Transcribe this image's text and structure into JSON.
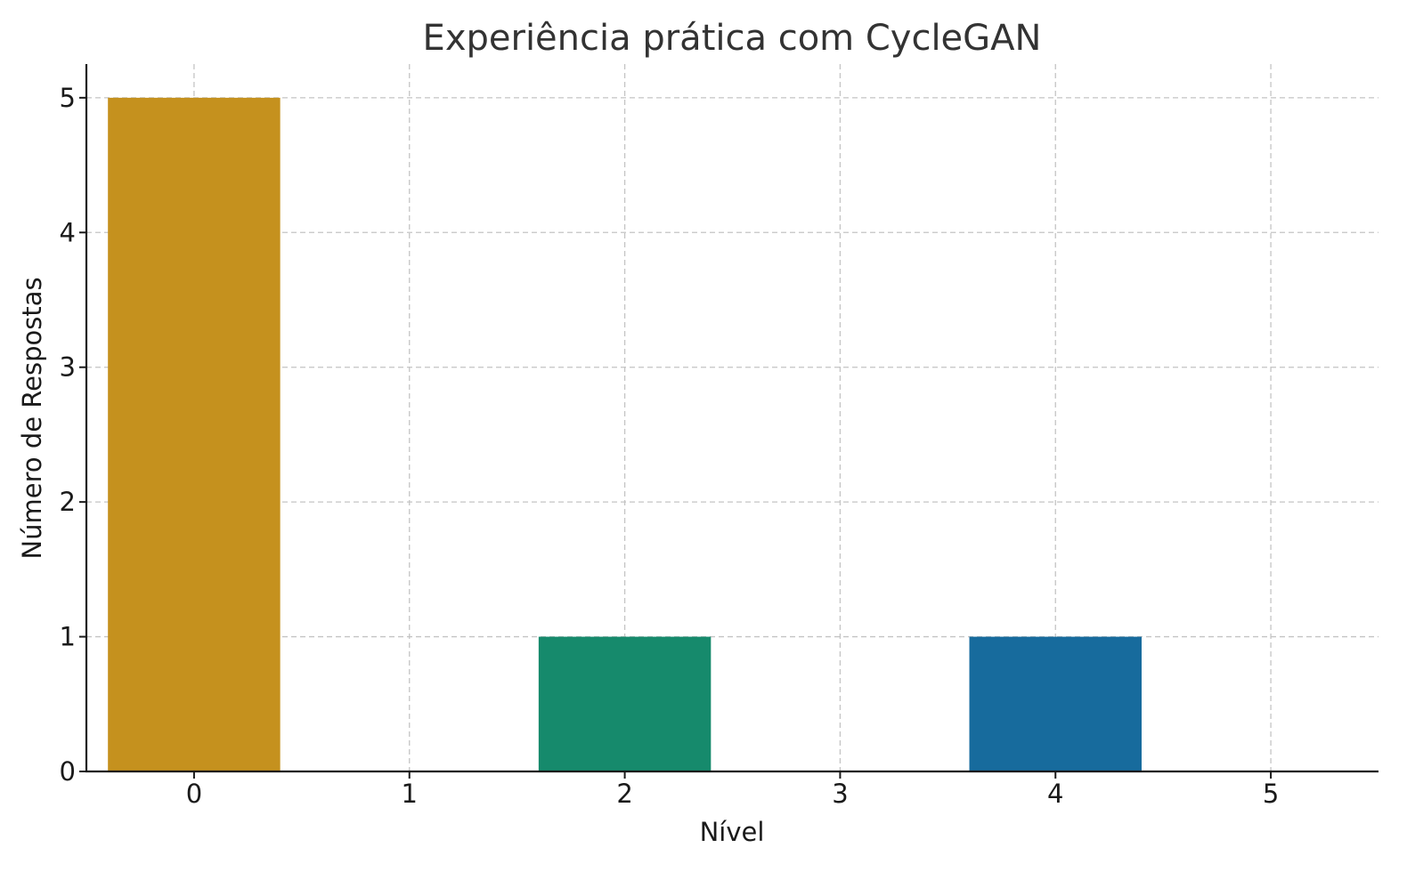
{
  "chart_data": {
    "type": "bar",
    "title": "Experiência prática com CycleGAN",
    "xlabel": "Nível",
    "ylabel": "Número de Respostas",
    "categories": [
      "0",
      "1",
      "2",
      "3",
      "4",
      "5"
    ],
    "values": [
      5,
      0,
      1,
      0,
      1,
      0
    ],
    "colors": [
      "#c5911e",
      "#c5911e",
      "#168a6c",
      "#168a6c",
      "#176b9d",
      "#176b9d"
    ],
    "yticks": [
      "0",
      "1",
      "2",
      "3",
      "4",
      "5"
    ],
    "ylim": [
      0,
      5.25
    ],
    "xlim": [
      -0.5,
      5.5
    ],
    "grid": true,
    "legend": "none"
  }
}
